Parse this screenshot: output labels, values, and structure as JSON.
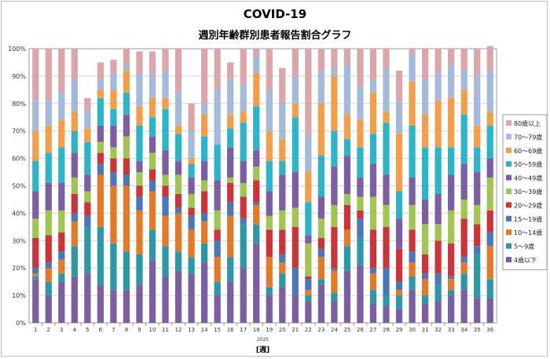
{
  "chart_data": {
    "type": "bar",
    "stacked": true,
    "percent": true,
    "title": "COVID-19",
    "subtitle": "週別年齢群別患者報告割合グラフ",
    "year_label": "2025",
    "xlabel": "[週]",
    "ylim": [
      0,
      100
    ],
    "yticks": [
      "0%",
      "10%",
      "20%",
      "30%",
      "40%",
      "50%",
      "60%",
      "70%",
      "80%",
      "90%",
      "100%"
    ],
    "grid": true,
    "legend_position": "right",
    "categories": [
      "1",
      "2",
      "3",
      "4",
      "5",
      "6",
      "7",
      "8",
      "9",
      "10",
      "11",
      "12",
      "13",
      "14",
      "15",
      "16",
      "17",
      "18",
      "19",
      "20",
      "21",
      "22",
      "23",
      "24",
      "25",
      "26",
      "27",
      "28",
      "29",
      "30",
      "31",
      "32",
      "33",
      "34",
      "35",
      "36"
    ],
    "series": [
      {
        "name": "4歳以下",
        "color": "#7b5fa0",
        "values": [
          16,
          10,
          15,
          17,
          18,
          14,
          12,
          12,
          14,
          23,
          17,
          19,
          18,
          22,
          10,
          15,
          20,
          29,
          10,
          13,
          10,
          8,
          14,
          8,
          19,
          21,
          7,
          6,
          5,
          12,
          7,
          8,
          10,
          12,
          9,
          9
        ]
      },
      {
        "name": "5～9歳",
        "color": "#2f97a3",
        "values": [
          1,
          5,
          3,
          11,
          17,
          21,
          17,
          14,
          11,
          11,
          11,
          7,
          6,
          7,
          5,
          9,
          16,
          7,
          3,
          5,
          0,
          2,
          2,
          3,
          9,
          10,
          5,
          4,
          5,
          5,
          3,
          6,
          2,
          6,
          16,
          7
        ]
      },
      {
        "name": "10～14歳",
        "color": "#e17a2b",
        "values": [
          1,
          5,
          5,
          9,
          0,
          19,
          21,
          24,
          16,
          14,
          11,
          14,
          10,
          8,
          9,
          15,
          0,
          7,
          11,
          4,
          0,
          2,
          8,
          8,
          6,
          0,
          6,
          0,
          2,
          5,
          6,
          0,
          4,
          4,
          0,
          12
        ]
      },
      {
        "name": "15～19歳",
        "color": "#4b76b8",
        "values": [
          2,
          2,
          3,
          3,
          4,
          4,
          5,
          4,
          5,
          4,
          7,
          2,
          5,
          3,
          6,
          5,
          2,
          1,
          0,
          3,
          10,
          4,
          3,
          1,
          0,
          7,
          2,
          10,
          3,
          4,
          2,
          4,
          1,
          2,
          3,
          5
        ]
      },
      {
        "name": "20～29歳",
        "color": "#c8363c",
        "values": [
          11,
          10,
          7,
          7,
          5,
          4,
          5,
          6,
          4,
          4,
          4,
          5,
          3,
          8,
          4,
          7,
          8,
          8,
          10,
          9,
          15,
          1,
          4,
          15,
          9,
          3,
          14,
          15,
          12,
          8,
          7,
          12,
          12,
          14,
          8,
          8
        ]
      },
      {
        "name": "30～39歳",
        "color": "#a2c454",
        "values": [
          7,
          9,
          8,
          6,
          4,
          4,
          4,
          8,
          5,
          6,
          4,
          7,
          5,
          4,
          7,
          2,
          5,
          5,
          5,
          7,
          7,
          12,
          7,
          8,
          4,
          5,
          12,
          8,
          0,
          9,
          11,
          6,
          12,
          7,
          7,
          12
        ]
      },
      {
        "name": "40～49歳",
        "color": "#7b5fa0",
        "values": [
          10,
          10,
          10,
          9,
          6,
          6,
          8,
          8,
          4,
          6,
          9,
          5,
          6,
          7,
          11,
          11,
          8,
          6,
          9,
          13,
          13,
          3,
          8,
          14,
          14,
          7,
          12,
          11,
          11,
          10,
          9,
          11,
          13,
          13,
          12,
          7
        ]
      },
      {
        "name": "50～59歳",
        "color": "#2fb3c8",
        "values": [
          11,
          11,
          13,
          8,
          12,
          10,
          6,
          8,
          13,
          7,
          15,
          10,
          5,
          9,
          13,
          7,
          14,
          16,
          11,
          5,
          20,
          12,
          15,
          13,
          6,
          11,
          11,
          19,
          10,
          19,
          19,
          17,
          10,
          18,
          9,
          12
        ]
      },
      {
        "name": "60～69歳",
        "color": "#f29f4b",
        "values": [
          11,
          10,
          10,
          7,
          5,
          3,
          7,
          8,
          7,
          7,
          4,
          3,
          2,
          8,
          0,
          5,
          4,
          12,
          11,
          8,
          5,
          11,
          19,
          20,
          9,
          10,
          15,
          4,
          21,
          16,
          12,
          17,
          18,
          9,
          8,
          5
        ]
      },
      {
        "name": "70～79歳",
        "color": "#a5b9d9",
        "values": [
          11,
          9,
          10,
          12,
          6,
          4,
          6,
          2,
          12,
          9,
          10,
          12,
          10,
          4,
          20,
          13,
          10,
          6,
          15,
          13,
          10,
          13,
          12,
          3,
          18,
          12,
          5,
          16,
          12,
          10,
          13,
          10,
          12,
          7,
          18,
          15
        ]
      },
      {
        "name": "80歳以上",
        "color": "#dba6ab",
        "values": [
          19,
          19,
          16,
          11,
          5,
          6,
          5,
          6,
          8,
          8,
          8,
          16,
          10,
          20,
          15,
          6,
          13,
          3,
          15,
          13,
          10,
          32,
          8,
          7,
          6,
          14,
          11,
          7,
          11,
          2,
          11,
          9,
          6,
          8,
          10,
          9
        ]
      }
    ]
  }
}
